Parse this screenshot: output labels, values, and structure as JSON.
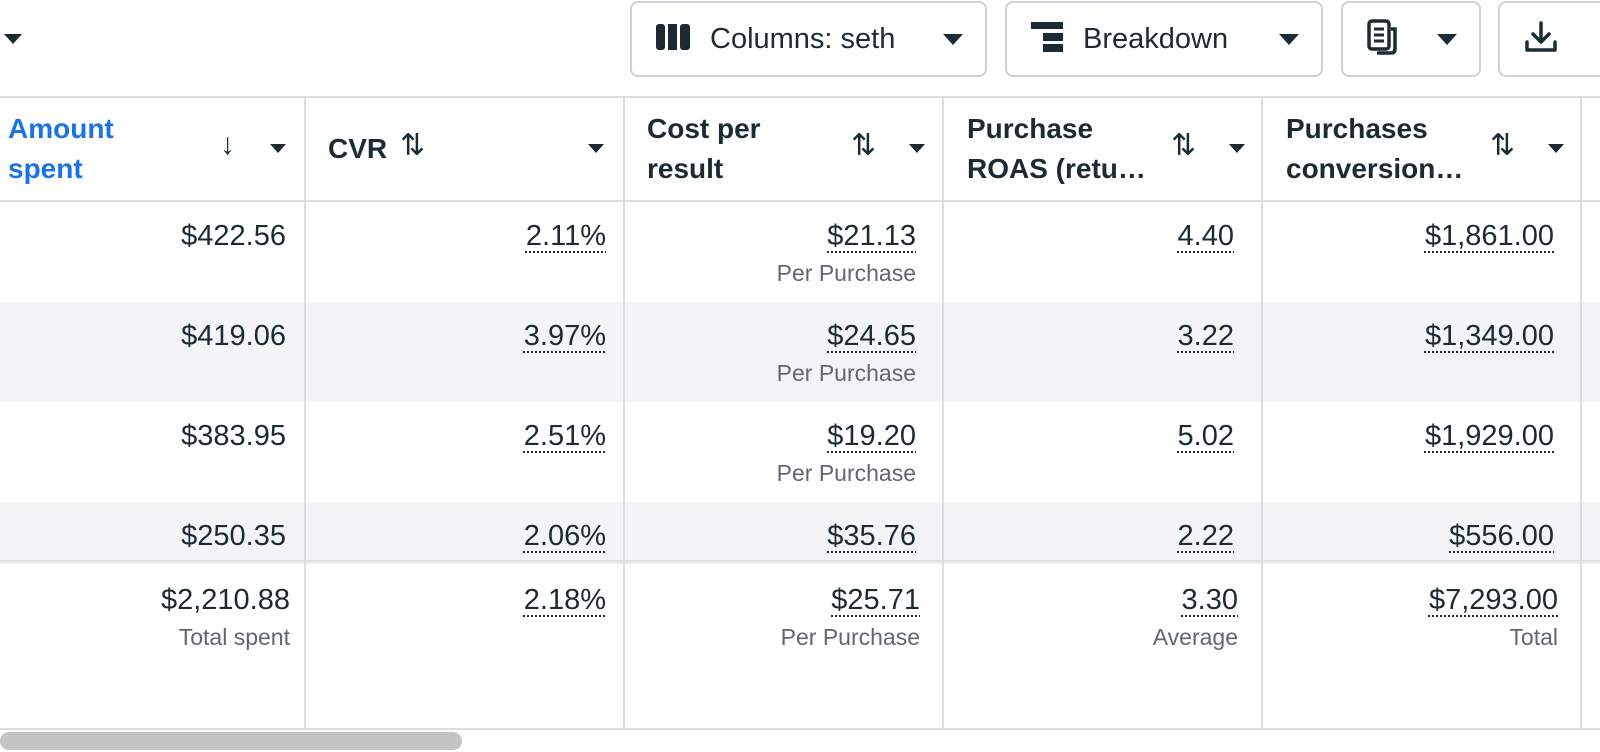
{
  "toolbar": {
    "columns_label": "Columns: seth",
    "breakdown_label": "Breakdown"
  },
  "table": {
    "headers": [
      {
        "title_l1": "Amount",
        "title_l2": "spent",
        "sort": "↓"
      },
      {
        "title_l1": "CVR",
        "title_l2": "",
        "sort": "⇅"
      },
      {
        "title_l1": "Cost per",
        "title_l2": "result",
        "sort": "⇅"
      },
      {
        "title_l1": "Purchase",
        "title_l2": "ROAS (retu…",
        "sort": "⇅"
      },
      {
        "title_l1": "Purchases",
        "title_l2": "conversion…",
        "sort": "⇅"
      }
    ],
    "rows": [
      {
        "amount": "$422.56",
        "cvr": "2.11%",
        "cost": "$21.13",
        "cost_sub": "Per Purchase",
        "roas": "4.40",
        "conv": "$1,861.00"
      },
      {
        "amount": "$419.06",
        "cvr": "3.97%",
        "cost": "$24.65",
        "cost_sub": "Per Purchase",
        "roas": "3.22",
        "conv": "$1,349.00"
      },
      {
        "amount": "$383.95",
        "cvr": "2.51%",
        "cost": "$19.20",
        "cost_sub": "Per Purchase",
        "roas": "5.02",
        "conv": "$1,929.00"
      },
      {
        "amount": "$250.35",
        "cvr": "2.06%",
        "cost": "$35.76",
        "cost_sub": "Per Purchase",
        "roas": "2.22",
        "conv": "$556.00"
      }
    ],
    "totals": {
      "amount": "$2,210.88",
      "amount_sub": "Total spent",
      "cvr": "2.18%",
      "cost": "$25.71",
      "cost_sub": "Per Purchase",
      "roas": "3.30",
      "roas_sub": "Average",
      "conv": "$7,293.00",
      "conv_sub": "Total"
    }
  },
  "icons": {
    "columns": "columns-icon",
    "breakdown": "breakdown-icon",
    "reports": "reports-icon",
    "download": "download-icon"
  },
  "colors": {
    "active_header": "#1b74e4",
    "text": "#1c2b33",
    "muted": "#606770",
    "alt_row": "#f2f4f5",
    "border": "#dadde1"
  }
}
